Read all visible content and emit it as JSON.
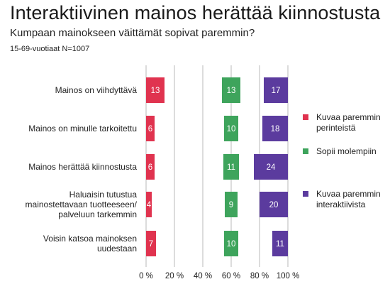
{
  "title": "Interaktiivinen mainos herättää kiinnostusta",
  "subtitle": "Kumpaan mainokseen väittämät sopivat paremmin?",
  "note": "15-69-vuotiaat N=1007",
  "chart_data": {
    "type": "bar",
    "orientation": "horizontal",
    "layout": "three panels (0–40 %, 40–80 %, 80–100 %), bars growing from panel start; green centered",
    "categories": [
      [
        "Mainos on viihdyttävä"
      ],
      [
        "Mainos on minulle tarkoitettu"
      ],
      [
        "Mainos herättää kiinnostusta"
      ],
      [
        "Haluaisin tutustua",
        "mainostettavaan tuotteeseen/",
        "palveluun tarkemmin"
      ],
      [
        "Voisin katsoa mainoksen",
        "uudestaan"
      ]
    ],
    "series": [
      {
        "name": "Kuvaa paremmin perinteistä",
        "legend_lines": [
          "Kuvaa paremmin",
          "perinteistä"
        ],
        "color": "#e0334f",
        "align": "left",
        "values": [
          13,
          6,
          6,
          4,
          7
        ]
      },
      {
        "name": "Sopii molempiin",
        "legend_lines": [
          "Sopii molempiin"
        ],
        "color": "#3ea45c",
        "align": "center",
        "values": [
          13,
          10,
          11,
          9,
          10
        ]
      },
      {
        "name": "Kuvaa paremmin interaktiivista",
        "legend_lines": [
          "Kuvaa paremmin",
          "interaktiivista"
        ],
        "color": "#5b3b9e",
        "align": "right",
        "values": [
          17,
          18,
          24,
          20,
          11
        ]
      }
    ],
    "x_ticks": [
      "0 %",
      "20 %",
      "40 %",
      "60 %",
      "80 %",
      "100 %"
    ],
    "xlim": [
      0,
      100
    ],
    "grid": true,
    "legend_position": "right"
  }
}
